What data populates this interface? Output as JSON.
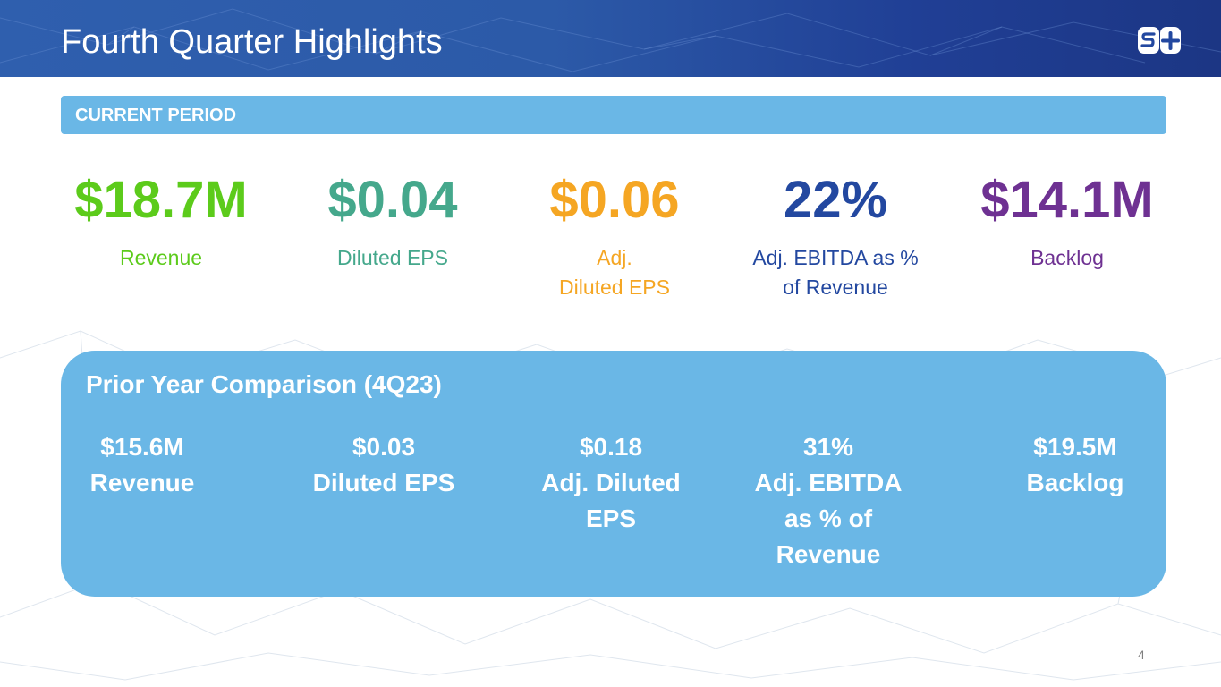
{
  "slide": {
    "title": "Fourth Quarter Highlights",
    "logo_text": "S+",
    "page_number": "4"
  },
  "current_period": {
    "label": "CURRENT PERIOD",
    "metrics": [
      {
        "value": "$18.7M",
        "label": "Revenue",
        "color": "#5ccb1b"
      },
      {
        "value": "$0.04",
        "label": "Diluted EPS",
        "color": "#45a88c"
      },
      {
        "value": "$0.06",
        "label": "Adj.\nDiluted EPS",
        "color": "#f5a623"
      },
      {
        "value": "22%",
        "label": "Adj. EBITDA as %\nof Revenue",
        "color": "#2348a0"
      },
      {
        "value": "$14.1M",
        "label": "Backlog",
        "color": "#6e3192"
      }
    ]
  },
  "prior_year": {
    "title": "Prior Year Comparison (4Q23)",
    "items": [
      {
        "value": "$15.6M",
        "label": "Revenue"
      },
      {
        "value": "$0.03",
        "label": "Diluted EPS"
      },
      {
        "value": "$0.18",
        "label": "Adj. Diluted\nEPS"
      },
      {
        "value": "31%",
        "label": "Adj. EBITDA\nas % of\nRevenue"
      },
      {
        "value": "$19.5M",
        "label": "Backlog"
      }
    ]
  },
  "colors": {
    "header_blue": "#2c5aa8",
    "panel_blue": "#6ab7e6"
  }
}
